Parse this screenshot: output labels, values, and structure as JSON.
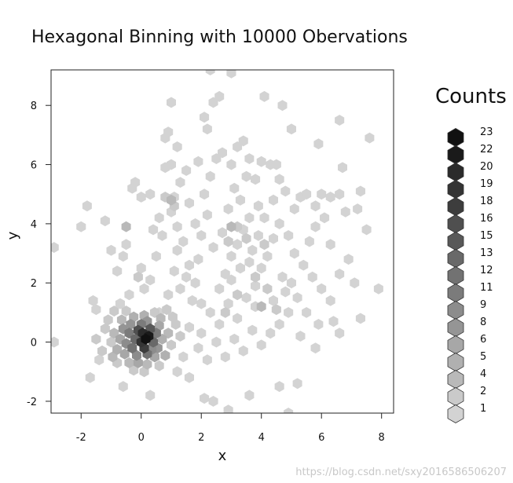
{
  "chart_data": {
    "type": "hexbin",
    "title": "Hexagonal Binning with 10000 Obervations",
    "xlabel": "x",
    "ylabel": "y",
    "xlim": [
      -3,
      8.4
    ],
    "ylim": [
      -2.4,
      9.2
    ],
    "xticks": [
      -2,
      0,
      2,
      4,
      6,
      8
    ],
    "yticks": [
      -2,
      0,
      2,
      4,
      6,
      8
    ],
    "grid": false,
    "legend": {
      "title": "Counts",
      "position": "right",
      "levels": [
        23,
        22,
        20,
        19,
        18,
        16,
        15,
        13,
        12,
        11,
        9,
        8,
        6,
        5,
        4,
        2,
        1
      ]
    },
    "color_low": "#d3d3d3",
    "color_high": "#111111",
    "hex_radius": 0.17,
    "points": [
      [
        0.15,
        0.1,
        23
      ],
      [
        0.25,
        0.2,
        22
      ],
      [
        0.05,
        0.3,
        20
      ],
      [
        0.0,
        0.0,
        19
      ],
      [
        0.1,
        -0.2,
        18
      ],
      [
        -0.1,
        0.4,
        16
      ],
      [
        0.3,
        0.45,
        15
      ],
      [
        -0.2,
        0.1,
        13
      ],
      [
        0.4,
        0.0,
        13
      ],
      [
        0.2,
        -0.4,
        12
      ],
      [
        -0.3,
        -0.2,
        12
      ],
      [
        0.0,
        0.6,
        11
      ],
      [
        -0.4,
        0.3,
        11
      ],
      [
        0.5,
        0.3,
        11
      ],
      [
        -0.5,
        -0.05,
        9
      ],
      [
        0.35,
        -0.25,
        9
      ],
      [
        -0.15,
        -0.45,
        9
      ],
      [
        0.55,
        -0.2,
        8
      ],
      [
        -0.6,
        0.45,
        8
      ],
      [
        0.2,
        0.7,
        8
      ],
      [
        -0.35,
        0.6,
        8
      ],
      [
        0.6,
        0.55,
        6
      ],
      [
        -0.7,
        0.1,
        6
      ],
      [
        -0.55,
        -0.4,
        6
      ],
      [
        0.45,
        -0.5,
        6
      ],
      [
        -0.1,
        -0.7,
        6
      ],
      [
        0.7,
        0.1,
        5
      ],
      [
        -0.8,
        -0.25,
        5
      ],
      [
        0.1,
        0.9,
        5
      ],
      [
        -0.25,
        0.85,
        5
      ],
      [
        0.8,
        -0.45,
        5
      ],
      [
        -0.65,
        0.75,
        4
      ],
      [
        0.65,
        0.8,
        4
      ],
      [
        -0.9,
        0.3,
        4
      ],
      [
        0.9,
        0.3,
        4
      ],
      [
        -0.4,
        -0.7,
        4
      ],
      [
        0.2,
        -0.75,
        4
      ],
      [
        -0.95,
        -0.5,
        4
      ],
      [
        -1.0,
        0.0,
        2
      ],
      [
        1.0,
        -0.1,
        2
      ],
      [
        0.45,
        1.0,
        2
      ],
      [
        -0.5,
        1.05,
        2
      ],
      [
        -1.2,
        0.45,
        2
      ],
      [
        1.15,
        0.6,
        2
      ],
      [
        -0.8,
        -0.7,
        2
      ],
      [
        0.6,
        -0.8,
        2
      ],
      [
        -0.25,
        -0.95,
        2
      ],
      [
        0.1,
        -1.0,
        2
      ],
      [
        -1.1,
        0.75,
        2
      ],
      [
        1.05,
        0.85,
        2
      ],
      [
        -1.3,
        -0.3,
        2
      ],
      [
        -1.5,
        0.1,
        2
      ],
      [
        1.3,
        0.2,
        2
      ],
      [
        0.85,
        1.1,
        2
      ],
      [
        -0.9,
        1.05,
        2
      ],
      [
        -2.9,
        3.2,
        1
      ],
      [
        -2.9,
        0.0,
        1
      ],
      [
        -2.0,
        3.9,
        1
      ],
      [
        -1.8,
        4.6,
        1
      ],
      [
        -1.2,
        4.1,
        1
      ],
      [
        -1.0,
        3.1,
        1
      ],
      [
        -0.8,
        2.4,
        1
      ],
      [
        -0.6,
        2.9,
        1
      ],
      [
        -0.5,
        3.3,
        1
      ],
      [
        -0.3,
        5.2,
        1
      ],
      [
        -0.2,
        5.4,
        1
      ],
      [
        0.0,
        4.9,
        1
      ],
      [
        0.3,
        5.0,
        1
      ],
      [
        0.4,
        3.8,
        1
      ],
      [
        0.6,
        4.2,
        1
      ],
      [
        0.7,
        3.6,
        1
      ],
      [
        0.5,
        2.9,
        1
      ],
      [
        0.3,
        2.1,
        1
      ],
      [
        0.1,
        1.8,
        1
      ],
      [
        -0.4,
        1.6,
        1
      ],
      [
        -0.7,
        1.3,
        1
      ],
      [
        1.0,
        8.1,
        1
      ],
      [
        0.8,
        6.9,
        1
      ],
      [
        0.9,
        7.1,
        1
      ],
      [
        1.0,
        6.0,
        1
      ],
      [
        0.8,
        5.9,
        1
      ],
      [
        1.2,
        6.6,
        1
      ],
      [
        1.3,
        5.4,
        1
      ],
      [
        1.1,
        4.9,
        1
      ],
      [
        1.0,
        4.4,
        1
      ],
      [
        1.2,
        3.9,
        1
      ],
      [
        1.4,
        3.4,
        1
      ],
      [
        1.2,
        3.1,
        1
      ],
      [
        1.6,
        2.6,
        1
      ],
      [
        1.5,
        2.2,
        1
      ],
      [
        1.3,
        1.8,
        1
      ],
      [
        1.7,
        1.4,
        1
      ],
      [
        1.8,
        2.0,
        1
      ],
      [
        1.9,
        2.8,
        1
      ],
      [
        2.0,
        3.6,
        1
      ],
      [
        2.2,
        4.3,
        1
      ],
      [
        2.1,
        5.0,
        1
      ],
      [
        2.3,
        5.6,
        1
      ],
      [
        2.5,
        6.2,
        1
      ],
      [
        2.2,
        7.2,
        1
      ],
      [
        2.1,
        7.6,
        1
      ],
      [
        2.6,
        8.3,
        1
      ],
      [
        2.4,
        8.1,
        1
      ],
      [
        2.7,
        6.4,
        1
      ],
      [
        3.0,
        6.0,
        1
      ],
      [
        3.2,
        6.6,
        1
      ],
      [
        3.4,
        6.8,
        1
      ],
      [
        3.6,
        6.2,
        1
      ],
      [
        3.8,
        5.5,
        1
      ],
      [
        4.0,
        6.1,
        1
      ],
      [
        4.3,
        6.0,
        1
      ],
      [
        4.5,
        6.0,
        1
      ],
      [
        4.6,
        5.5,
        1
      ],
      [
        4.8,
        5.1,
        1
      ],
      [
        5.1,
        4.5,
        1
      ],
      [
        5.3,
        4.9,
        1
      ],
      [
        5.5,
        5.0,
        1
      ],
      [
        5.8,
        4.6,
        1
      ],
      [
        6.0,
        5.0,
        1
      ],
      [
        6.3,
        4.9,
        1
      ],
      [
        6.6,
        5.0,
        1
      ],
      [
        6.8,
        4.4,
        1
      ],
      [
        7.2,
        4.5,
        1
      ],
      [
        7.3,
        5.1,
        1
      ],
      [
        6.7,
        5.9,
        1
      ],
      [
        6.6,
        7.5,
        1
      ],
      [
        5.9,
        6.7,
        1
      ],
      [
        7.6,
        6.9,
        1
      ],
      [
        5.0,
        7.2,
        1
      ],
      [
        4.1,
        8.3,
        1
      ],
      [
        4.7,
        8.0,
        1
      ],
      [
        3.0,
        9.1,
        1
      ],
      [
        2.3,
        9.2,
        1
      ],
      [
        3.6,
        4.2,
        1
      ],
      [
        3.4,
        3.8,
        1
      ],
      [
        3.2,
        3.3,
        1
      ],
      [
        3.0,
        2.9,
        1
      ],
      [
        2.8,
        2.3,
        1
      ],
      [
        2.6,
        1.8,
        1
      ],
      [
        2.9,
        1.3,
        1
      ],
      [
        3.2,
        0.8,
        1
      ],
      [
        3.5,
        1.5,
        1
      ],
      [
        3.8,
        1.9,
        1
      ],
      [
        4.0,
        2.5,
        1
      ],
      [
        4.2,
        2.9,
        1
      ],
      [
        4.4,
        3.5,
        1
      ],
      [
        4.6,
        4.0,
        1
      ],
      [
        4.9,
        3.6,
        1
      ],
      [
        5.1,
        3.0,
        1
      ],
      [
        5.4,
        2.6,
        1
      ],
      [
        5.7,
        2.2,
        1
      ],
      [
        6.0,
        1.8,
        1
      ],
      [
        6.3,
        1.4,
        1
      ],
      [
        6.6,
        2.3,
        1
      ],
      [
        6.9,
        2.8,
        1
      ],
      [
        7.1,
        2.0,
        1
      ],
      [
        7.3,
        0.8,
        1
      ],
      [
        6.4,
        0.7,
        1
      ],
      [
        5.9,
        0.6,
        1
      ],
      [
        5.5,
        1.0,
        1
      ],
      [
        5.2,
        1.5,
        1
      ],
      [
        4.9,
        1.0,
        1
      ],
      [
        4.6,
        0.6,
        1
      ],
      [
        4.3,
        0.3,
        1
      ],
      [
        4.0,
        -0.1,
        1
      ],
      [
        3.7,
        0.4,
        1
      ],
      [
        3.4,
        -0.3,
        1
      ],
      [
        3.1,
        0.1,
        1
      ],
      [
        2.8,
        -0.5,
        1
      ],
      [
        2.5,
        0.0,
        1
      ],
      [
        2.2,
        -0.6,
        1
      ],
      [
        1.9,
        -0.2,
        1
      ],
      [
        1.6,
        0.5,
        1
      ],
      [
        1.4,
        -0.5,
        1
      ],
      [
        1.2,
        -1.0,
        1
      ],
      [
        1.6,
        -1.2,
        1
      ],
      [
        2.1,
        -1.9,
        1
      ],
      [
        2.4,
        -2.0,
        1
      ],
      [
        2.9,
        -2.3,
        1
      ],
      [
        3.6,
        -1.8,
        1
      ],
      [
        4.6,
        -1.5,
        1
      ],
      [
        5.2,
        -1.4,
        1
      ],
      [
        4.9,
        -2.4,
        1
      ],
      [
        0.3,
        -1.8,
        1
      ],
      [
        -0.6,
        -1.5,
        1
      ],
      [
        -1.7,
        -1.2,
        1
      ],
      [
        -1.4,
        -0.6,
        1
      ],
      [
        -1.5,
        1.1,
        1
      ],
      [
        -1.6,
        1.4,
        1
      ],
      [
        2.0,
        1.3,
        1
      ],
      [
        2.3,
        1.0,
        1
      ],
      [
        2.4,
        3.2,
        1
      ],
      [
        2.7,
        3.7,
        1
      ],
      [
        2.9,
        4.5,
        1
      ],
      [
        3.1,
        5.2,
        1
      ],
      [
        3.3,
        4.8,
        1
      ],
      [
        3.5,
        5.6,
        1
      ],
      [
        3.9,
        4.6,
        1
      ],
      [
        4.1,
        4.2,
        1
      ],
      [
        4.4,
        4.8,
        1
      ],
      [
        3.7,
        3.1,
        1
      ],
      [
        3.9,
        3.6,
        1
      ],
      [
        5.6,
        3.4,
        1
      ],
      [
        5.8,
        3.9,
        1
      ],
      [
        6.1,
        4.2,
        1
      ],
      [
        6.3,
        3.3,
        1
      ],
      [
        5.3,
        0.2,
        1
      ],
      [
        5.8,
        -0.2,
        1
      ],
      [
        6.6,
        0.3,
        1
      ],
      [
        7.9,
        1.8,
        1
      ],
      [
        7.5,
        3.8,
        1
      ],
      [
        1.8,
        4.0,
        1
      ],
      [
        1.6,
        4.7,
        1
      ],
      [
        1.5,
        5.8,
        1
      ],
      [
        1.9,
        6.1,
        1
      ],
      [
        0.6,
        1.0,
        1
      ],
      [
        0.9,
        1.6,
        1
      ],
      [
        1.1,
        2.4,
        1
      ],
      [
        0.0,
        2.5,
        1
      ],
      [
        2.0,
        0.3,
        1
      ],
      [
        2.6,
        0.6,
        1
      ],
      [
        4.7,
        2.2,
        1
      ],
      [
        5.0,
        2.0,
        1
      ],
      [
        3.0,
        2.1,
        1
      ],
      [
        3.3,
        2.5,
        1
      ],
      [
        3.6,
        2.7,
        1
      ],
      [
        3.8,
        1.2,
        1
      ],
      [
        4.4,
        1.4,
        1
      ],
      [
        4.8,
        1.7,
        1
      ],
      [
        -0.1,
        2.2,
        2
      ],
      [
        0.8,
        4.9,
        2
      ],
      [
        1.1,
        4.6,
        2
      ],
      [
        3.2,
        3.9,
        2
      ],
      [
        2.9,
        3.4,
        2
      ],
      [
        3.5,
        3.5,
        2
      ],
      [
        3.8,
        2.2,
        2
      ],
      [
        3.2,
        1.6,
        2
      ],
      [
        4.1,
        3.3,
        2
      ],
      [
        4.5,
        1.1,
        2
      ],
      [
        4.2,
        1.8,
        2
      ],
      [
        2.8,
        1.0,
        2
      ],
      [
        -0.5,
        3.9,
        4
      ],
      [
        3.0,
        3.9,
        4
      ],
      [
        4.0,
        1.2,
        4
      ],
      [
        1.0,
        4.8,
        4
      ]
    ]
  }
}
